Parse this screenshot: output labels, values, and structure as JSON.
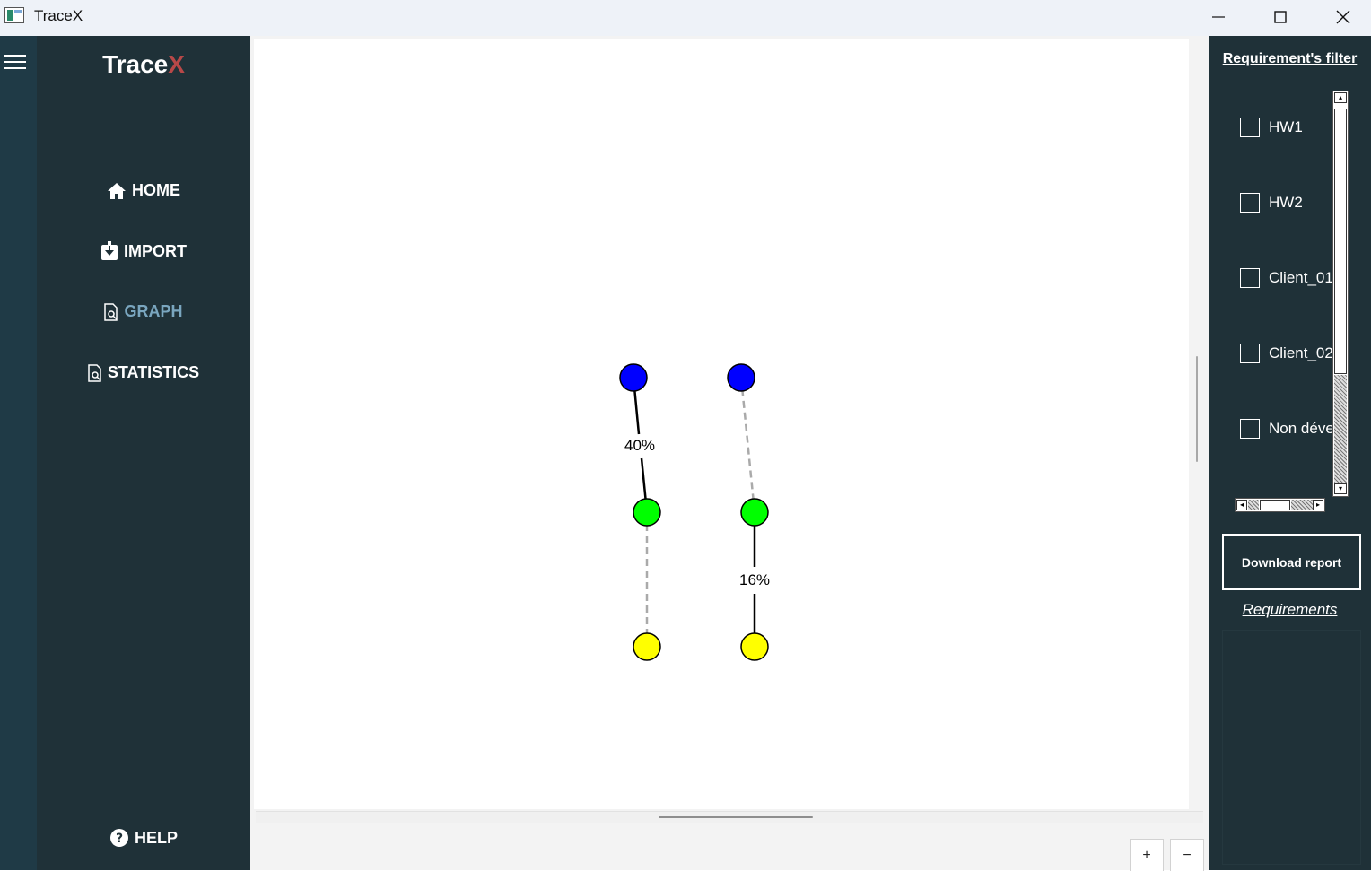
{
  "window": {
    "title": "TraceX"
  },
  "sidebar": {
    "logo_main": "Trace",
    "logo_accent": "X",
    "items": [
      {
        "label": "HOME",
        "icon": "home-icon"
      },
      {
        "label": "IMPORT",
        "icon": "import-icon"
      },
      {
        "label": "GRAPH",
        "icon": "graph-icon",
        "active": true
      },
      {
        "label": "STATISTICS",
        "icon": "statistics-icon"
      }
    ],
    "help_label": "HELP"
  },
  "graph": {
    "edges": [
      {
        "label": "40%",
        "style": "solid"
      },
      {
        "label": "16%",
        "style": "solid"
      }
    ],
    "node_colors": {
      "top": "#0000ff",
      "middle": "#00ff00",
      "bottom": "#ffff00"
    },
    "zoom_in_label": "+",
    "zoom_out_label": "−"
  },
  "filter": {
    "title": "Requirement's filter",
    "items": [
      {
        "label": "HW1",
        "checked": false
      },
      {
        "label": "HW2",
        "checked": false
      },
      {
        "label": "Client_01",
        "checked": false
      },
      {
        "label": "Client_02",
        "checked": false
      },
      {
        "label": "Non développé",
        "checked": false
      }
    ],
    "download_label": "Download report",
    "requirements_link": "Requirements"
  },
  "colors": {
    "sidebar_bg": "#1f3138",
    "strip_bg": "#1f3a46",
    "active_nav": "#7aa6bf",
    "logo_accent": "#b84848"
  }
}
